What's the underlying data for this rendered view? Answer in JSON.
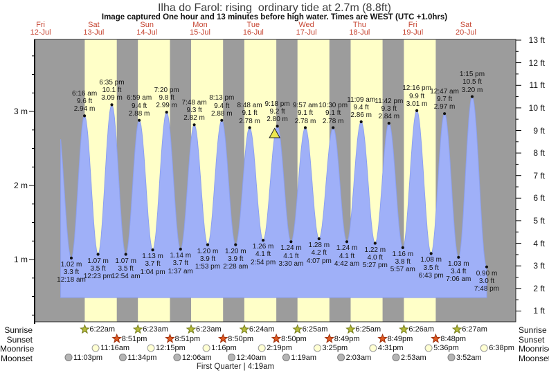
{
  "header": {
    "title": "Ilha do Farol: rising  ordinary tide at 2.7m (8.8ft)",
    "subtitle": "Image captured One hour and 13 minutes before high water. Times are WEST (UTC +1.0hrs)"
  },
  "chart_data": {
    "type": "area",
    "title": "Ilha do Farol: rising  ordinary tide at 2.7m (8.8ft)",
    "ylabel_left_unit": "m",
    "ylabel_right_unit": "ft",
    "left_ticks_m": [
      1,
      2,
      3
    ],
    "right_ticks_ft": [
      1,
      2,
      3,
      4,
      5,
      6,
      7,
      8,
      9,
      10,
      11,
      12,
      13
    ],
    "days": [
      {
        "name": "Fri",
        "date": "12-Jul"
      },
      {
        "name": "Sat",
        "date": "13-Jul"
      },
      {
        "name": "Sun",
        "date": "14-Jul"
      },
      {
        "name": "Mon",
        "date": "15-Jul"
      },
      {
        "name": "Tue",
        "date": "16-Jul"
      },
      {
        "name": "Wed",
        "date": "17-Jul"
      },
      {
        "name": "Thu",
        "date": "18-Jul"
      },
      {
        "name": "Fri",
        "date": "19-Jul"
      },
      {
        "name": "Sat",
        "date": "20-Jul"
      }
    ],
    "highs": [
      {
        "day": 1,
        "time": "6:16 am",
        "ft": "9.6 ft",
        "m": "2.94 m"
      },
      {
        "day": 1,
        "time": "6:35 pm",
        "ft": "10.1 ft",
        "m": "3.09 m"
      },
      {
        "day": 2,
        "time": "6:59 am",
        "ft": "9.4 ft",
        "m": "2.88 m"
      },
      {
        "day": 2,
        "time": "7:20 pm",
        "ft": "9.8 ft",
        "m": "2.99 m"
      },
      {
        "day": 3,
        "time": "7:48 am",
        "ft": "9.3 ft",
        "m": "2.82 m"
      },
      {
        "day": 3,
        "time": "8:13 pm",
        "ft": "9.4 ft",
        "m": "2.88 m"
      },
      {
        "day": 4,
        "time": "8:48 am",
        "ft": "9.1 ft",
        "m": "2.78 m"
      },
      {
        "day": 4,
        "time": "9:18 pm",
        "ft": "9.2 ft",
        "m": "2.80 m"
      },
      {
        "day": 5,
        "time": "9:57 am",
        "ft": "9.1 ft",
        "m": "2.78 m"
      },
      {
        "day": 5,
        "time": "10:30 pm",
        "ft": "9.1 ft",
        "m": "2.78 m"
      },
      {
        "day": 6,
        "time": "11:09 am",
        "ft": "9.4 ft",
        "m": "2.86 m"
      },
      {
        "day": 6,
        "time": "11:42 pm",
        "ft": "9.3 ft",
        "m": "2.84 m"
      },
      {
        "day": 7,
        "time": "12:16 pm",
        "ft": "9.9 ft",
        "m": "3.01 m"
      },
      {
        "day": 8,
        "time": "12:47 am",
        "ft": "9.7 ft",
        "m": "2.97 m"
      },
      {
        "day": 8,
        "time": "1:15 pm",
        "ft": "10.5 ft",
        "m": "3.20 m"
      }
    ],
    "lows": [
      {
        "day": 1,
        "time": "12:18 am",
        "ft": "3.3 ft",
        "m": "1.02 m"
      },
      {
        "day": 1,
        "time": "12:23 pm",
        "ft": "3.5 ft",
        "m": "1.07 m"
      },
      {
        "day": 2,
        "time": "12:54 am",
        "ft": "3.5 ft",
        "m": "1.07 m"
      },
      {
        "day": 2,
        "time": "1:04 pm",
        "ft": "3.7 ft",
        "m": "1.13 m"
      },
      {
        "day": 3,
        "time": "1:37 am",
        "ft": "3.7 ft",
        "m": "1.14 m"
      },
      {
        "day": 3,
        "time": "1:53 pm",
        "ft": "3.9 ft",
        "m": "1.20 m"
      },
      {
        "day": 4,
        "time": "2:28 am",
        "ft": "3.9 ft",
        "m": "1.20 m"
      },
      {
        "day": 4,
        "time": "2:54 pm",
        "ft": "4.1 ft",
        "m": "1.26 m"
      },
      {
        "day": 5,
        "time": "3:30 am",
        "ft": "4.1 ft",
        "m": "1.24 m"
      },
      {
        "day": 5,
        "time": "4:07 pm",
        "ft": "4.2 ft",
        "m": "1.28 m"
      },
      {
        "day": 6,
        "time": "4:42 am",
        "ft": "4.1 ft",
        "m": "1.24 m"
      },
      {
        "day": 6,
        "time": "5:27 pm",
        "ft": "4.0 ft",
        "m": "1.22 m"
      },
      {
        "day": 7,
        "time": "5:57 am",
        "ft": "3.8 ft",
        "m": "1.16 m"
      },
      {
        "day": 7,
        "time": "6:43 pm",
        "ft": "3.5 ft",
        "m": "1.08 m"
      },
      {
        "day": 8,
        "time": "7:06 am",
        "ft": "3.4 ft",
        "m": "1.03 m"
      },
      {
        "day": 8,
        "time": "7:48 pm",
        "ft": "3.0 ft",
        "m": "0.90 m"
      }
    ],
    "partial_first_high": {
      "day": 0,
      "hour": 17.9,
      "value": 2.9,
      "visible_from_hour": 19.5
    },
    "current_marker": {
      "day": 4,
      "hour": 20.08,
      "value": 2.7,
      "color": "#ece84f",
      "edge": "#222222"
    },
    "colors": {
      "night_band": "#9c9c9c",
      "day_band": "#ffffc8",
      "tide_fill": "#9fb0f8",
      "tide_edge": "#8ca0f0",
      "date_text": "#c64532",
      "point_dot": "#111111"
    }
  },
  "astro": {
    "rows": [
      {
        "label": "Sunrise",
        "icon": "sunrise-star-icon",
        "marker": "star",
        "fill": "#b5ba38",
        "edge": "#757d1f",
        "events": [
          {
            "day": 1,
            "time": "6:22am"
          },
          {
            "day": 2,
            "time": "6:23am"
          },
          {
            "day": 3,
            "time": "6:23am"
          },
          {
            "day": 4,
            "time": "6:24am"
          },
          {
            "day": 5,
            "time": "6:25am"
          },
          {
            "day": 6,
            "time": "6:25am"
          },
          {
            "day": 7,
            "time": "6:26am"
          },
          {
            "day": 8,
            "time": "6:27am"
          }
        ]
      },
      {
        "label": "Sunset",
        "icon": "sunset-star-icon",
        "marker": "star",
        "fill": "#e05a22",
        "edge": "#9c3210",
        "events": [
          {
            "day": 1,
            "time": "8:51pm"
          },
          {
            "day": 2,
            "time": "8:51pm"
          },
          {
            "day": 3,
            "time": "8:50pm"
          },
          {
            "day": 4,
            "time": "8:50pm"
          },
          {
            "day": 5,
            "time": "8:49pm"
          },
          {
            "day": 6,
            "time": "8:49pm"
          },
          {
            "day": 7,
            "time": "8:48pm"
          }
        ]
      },
      {
        "label": "Moonrise",
        "icon": "moonrise-circle-icon",
        "marker": "circle",
        "fill": "#ffffd2",
        "edge": "#9a9a9a",
        "events": [
          {
            "day": 1,
            "time": "11:16am"
          },
          {
            "day": 2,
            "time": "12:15pm"
          },
          {
            "day": 3,
            "time": "1:16pm"
          },
          {
            "day": 4,
            "time": "2:19pm"
          },
          {
            "day": 5,
            "time": "3:25pm"
          },
          {
            "day": 6,
            "time": "4:31pm"
          },
          {
            "day": 7,
            "time": "5:36pm"
          },
          {
            "day": 8,
            "time": "6:38pm"
          }
        ]
      },
      {
        "label": "Moonset",
        "icon": "moonset-circle-icon",
        "marker": "circle",
        "fill": "#b5b5b5",
        "edge": "#7c7c7c",
        "events": [
          {
            "day": 0,
            "time": "11:03pm"
          },
          {
            "day": 1,
            "time": "11:34pm"
          },
          {
            "day": 3,
            "time": "12:06am"
          },
          {
            "day": 4,
            "time": "12:40am"
          },
          {
            "day": 5,
            "time": "1:19am"
          },
          {
            "day": 6,
            "time": "2:03am"
          },
          {
            "day": 7,
            "time": "2:53am"
          },
          {
            "day": 8,
            "time": "3:52am"
          }
        ]
      }
    ],
    "moon_phase": "First Quarter | 4:19am"
  }
}
